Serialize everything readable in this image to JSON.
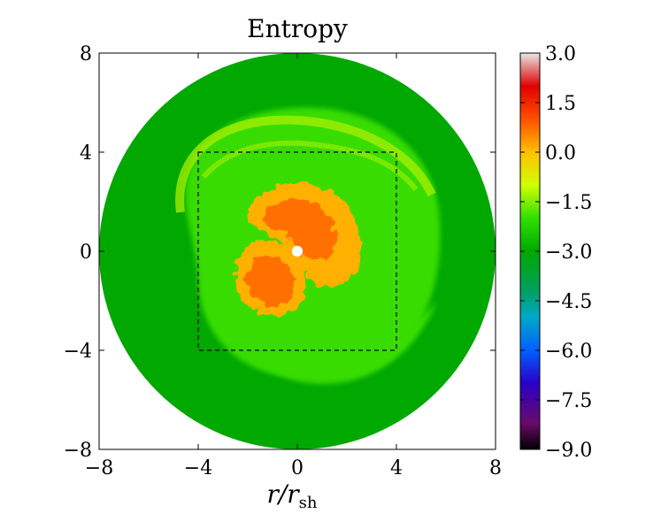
{
  "chart_data": {
    "type": "heatmap",
    "title": "Entropy",
    "xlabel": "r/r",
    "xlabel_sub": "sh",
    "ylabel": "",
    "xlim": [
      -8,
      8
    ],
    "ylim": [
      -8,
      8
    ],
    "x_ticks": [
      {
        "value": -8,
        "label": "−8"
      },
      {
        "value": -4,
        "label": "−4"
      },
      {
        "value": 0,
        "label": "0"
      },
      {
        "value": 4,
        "label": "4"
      },
      {
        "value": 8,
        "label": "8"
      }
    ],
    "y_ticks": [
      {
        "value": -8,
        "label": "−8"
      },
      {
        "value": -4,
        "label": "−4"
      },
      {
        "value": 0,
        "label": "0"
      },
      {
        "value": 4,
        "label": "4"
      },
      {
        "value": 8,
        "label": "8"
      }
    ],
    "domain_radius": 8,
    "inner_hole_radius": 0.22,
    "dashed_box": {
      "x": [
        -4,
        4
      ],
      "y": [
        -4,
        4
      ]
    },
    "colorbar": {
      "min": -9.0,
      "max": 3.0,
      "ticks": [
        {
          "value": 3.0,
          "label": "3.0"
        },
        {
          "value": 1.5,
          "label": "1.5"
        },
        {
          "value": 0.0,
          "label": "0.0"
        },
        {
          "value": -1.5,
          "label": "−1.5"
        },
        {
          "value": -3.0,
          "label": "−3.0"
        },
        {
          "value": -4.5,
          "label": "−4.5"
        },
        {
          "value": -6.0,
          "label": "−6.0"
        },
        {
          "value": -7.5,
          "label": "−7.5"
        },
        {
          "value": -9.0,
          "label": "−9.0"
        }
      ],
      "stops": [
        {
          "value": -9.0,
          "color": "#000000"
        },
        {
          "value": -8.2,
          "color": "#6a0a6a"
        },
        {
          "value": -7.0,
          "color": "#2a00c8"
        },
        {
          "value": -6.0,
          "color": "#0060ff"
        },
        {
          "value": -5.0,
          "color": "#00a8c8"
        },
        {
          "value": -4.2,
          "color": "#00a060"
        },
        {
          "value": -3.0,
          "color": "#00a800"
        },
        {
          "value": -2.0,
          "color": "#30e000"
        },
        {
          "value": -1.0,
          "color": "#d0ff00"
        },
        {
          "value": 0.0,
          "color": "#ffc000"
        },
        {
          "value": 1.0,
          "color": "#ff5000"
        },
        {
          "value": 2.0,
          "color": "#e00000"
        },
        {
          "value": 3.0,
          "color": "#e8e8e8"
        }
      ]
    },
    "colors": {
      "outer_region": "#00a800",
      "mid_region": "#38dc00",
      "shock_front": "#a8f000",
      "hot_bubble": "#ffb000",
      "hot_core": "#ff7000",
      "center_hole": "#ffffff"
    }
  }
}
